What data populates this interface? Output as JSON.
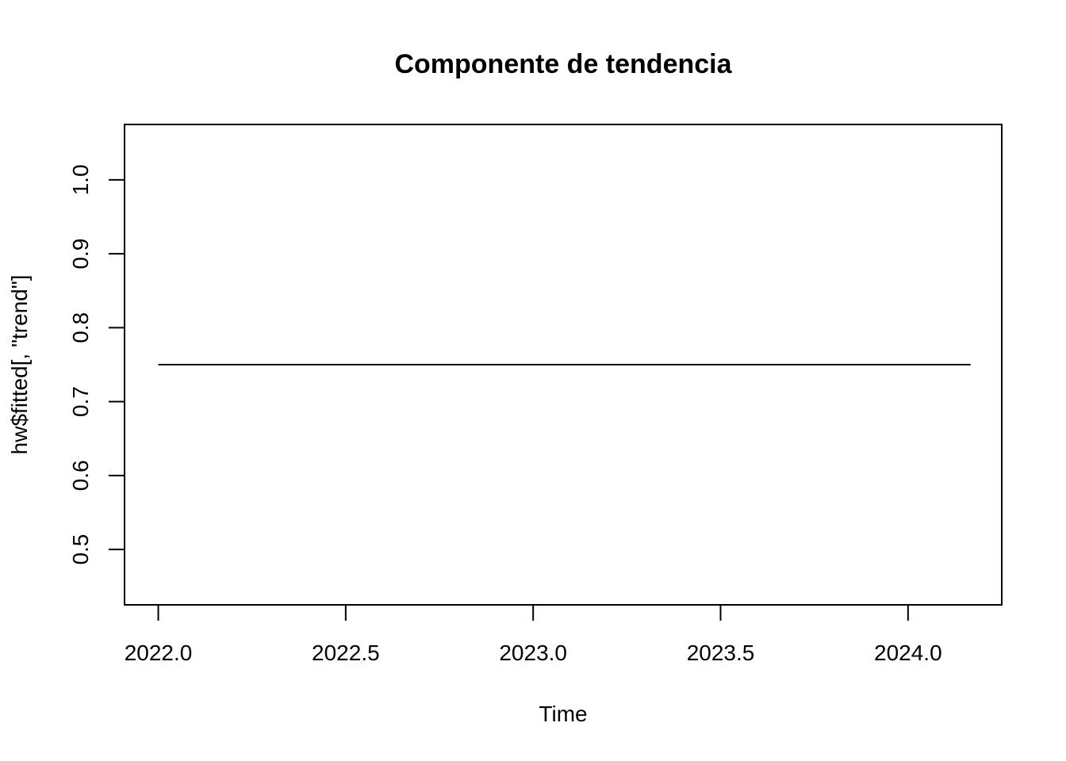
{
  "chart_data": {
    "type": "line",
    "title": "Componente de tendencia",
    "xlabel": "Time",
    "ylabel": "hw$fitted[, \"trend\"]",
    "xlim": [
      2021.91,
      2024.25
    ],
    "ylim": [
      0.425,
      1.075
    ],
    "xticks": [
      2022.0,
      2022.5,
      2023.0,
      2023.5,
      2024.0
    ],
    "xtick_labels": [
      "2022.0",
      "2022.5",
      "2023.0",
      "2023.5",
      "2024.0"
    ],
    "yticks": [
      0.5,
      0.6,
      0.7,
      0.8,
      0.9,
      1.0
    ],
    "ytick_labels": [
      "0.5",
      "0.6",
      "0.7",
      "0.8",
      "0.9",
      "1.0"
    ],
    "grid": false,
    "series": [
      {
        "x": [
          2022.0,
          2024.1667
        ],
        "y": [
          0.75,
          0.75
        ]
      }
    ]
  }
}
